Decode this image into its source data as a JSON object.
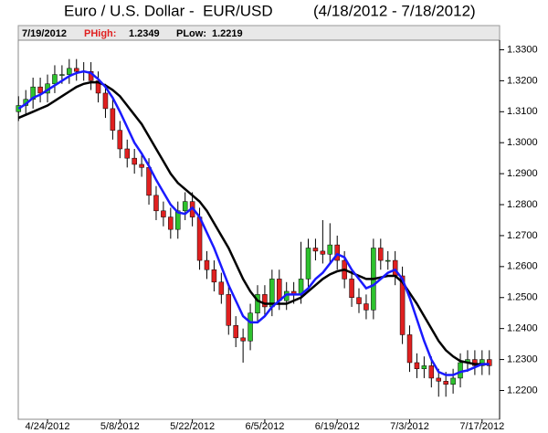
{
  "chart_data": {
    "type": "candlestick",
    "title": "Euro / U.S. Dollar -  EUR/USD",
    "date_range": "(4/18/2012 - 7/18/2012)",
    "info": {
      "date": "7/19/2012",
      "high_label": "PHigh:",
      "high": 1.2349,
      "low_label": "PLow:",
      "low": 1.2219
    },
    "categories": [
      null,
      null,
      null,
      null,
      "4/24/2012",
      null,
      null,
      null,
      null,
      null,
      null,
      null,
      null,
      null,
      "5/8/2012",
      null,
      null,
      null,
      null,
      null,
      null,
      null,
      null,
      null,
      "5/22/2012",
      null,
      null,
      null,
      null,
      null,
      null,
      null,
      null,
      null,
      "6/5/2012",
      null,
      null,
      null,
      null,
      null,
      null,
      null,
      null,
      null,
      "6/19/2012",
      null,
      null,
      null,
      null,
      null,
      null,
      null,
      null,
      null,
      "7/3/2012",
      null,
      null,
      null,
      null,
      null,
      null,
      null,
      null,
      null,
      "7/17/2012",
      null
    ],
    "open": [
      1.31,
      1.312,
      1.314,
      1.318,
      1.316,
      1.319,
      1.322,
      1.322,
      1.324,
      1.323,
      1.323,
      1.32,
      1.316,
      1.311,
      1.304,
      1.298,
      1.295,
      1.293,
      1.292,
      1.283,
      1.278,
      1.276,
      1.272,
      1.278,
      1.281,
      1.276,
      1.262,
      1.259,
      1.255,
      1.251,
      1.241,
      1.237,
      1.236,
      1.245,
      1.251,
      1.247,
      1.256,
      1.249,
      1.252,
      1.251,
      1.256,
      1.266,
      1.265,
      1.264,
      1.267,
      1.262,
      1.256,
      1.25,
      1.248,
      1.246,
      1.266,
      1.262,
      1.262,
      1.257,
      1.238,
      1.229,
      1.227,
      1.228,
      1.224,
      1.223,
      1.222,
      1.224,
      1.229,
      1.23,
      1.228,
      1.23
    ],
    "high": [
      1.315,
      1.317,
      1.321,
      1.321,
      1.322,
      1.325,
      1.325,
      1.327,
      1.327,
      1.326,
      1.326,
      1.323,
      1.319,
      1.314,
      1.307,
      1.301,
      1.298,
      1.296,
      1.295,
      1.286,
      1.281,
      1.279,
      1.281,
      1.284,
      1.284,
      1.279,
      1.265,
      1.262,
      1.258,
      1.254,
      1.244,
      1.24,
      1.248,
      1.254,
      1.254,
      1.259,
      1.259,
      1.255,
      1.255,
      1.268,
      1.269,
      1.269,
      1.275,
      1.274,
      1.27,
      1.265,
      1.259,
      1.253,
      1.251,
      1.269,
      1.269,
      1.265,
      1.265,
      1.26,
      1.241,
      1.232,
      1.231,
      1.231,
      1.227,
      1.226,
      1.227,
      1.232,
      1.233,
      1.233,
      1.233,
      1.233
    ],
    "low": [
      1.307,
      1.309,
      1.311,
      1.313,
      1.313,
      1.316,
      1.319,
      1.319,
      1.32,
      1.32,
      1.317,
      1.313,
      1.308,
      1.301,
      1.295,
      1.292,
      1.29,
      1.289,
      1.28,
      1.275,
      1.273,
      1.269,
      1.269,
      1.275,
      1.273,
      1.259,
      1.256,
      1.252,
      1.248,
      1.238,
      1.234,
      1.229,
      1.233,
      1.242,
      1.244,
      1.244,
      1.246,
      1.246,
      1.248,
      1.248,
      1.253,
      1.262,
      1.261,
      1.261,
      1.259,
      1.253,
      1.247,
      1.245,
      1.243,
      1.243,
      1.259,
      1.259,
      1.254,
      1.235,
      1.226,
      1.224,
      1.224,
      1.221,
      1.218,
      1.218,
      1.219,
      1.221,
      1.226,
      1.225,
      1.225,
      1.225
    ],
    "close": [
      1.312,
      1.314,
      1.318,
      1.316,
      1.319,
      1.322,
      1.322,
      1.324,
      1.323,
      1.323,
      1.32,
      1.316,
      1.311,
      1.304,
      1.298,
      1.295,
      1.293,
      1.292,
      1.283,
      1.278,
      1.276,
      1.272,
      1.278,
      1.281,
      1.276,
      1.262,
      1.259,
      1.255,
      1.251,
      1.241,
      1.237,
      1.236,
      1.245,
      1.251,
      1.247,
      1.256,
      1.249,
      1.252,
      1.251,
      1.256,
      1.266,
      1.265,
      1.264,
      1.267,
      1.262,
      1.256,
      1.25,
      1.248,
      1.246,
      1.266,
      1.262,
      1.262,
      1.257,
      1.238,
      1.229,
      1.227,
      1.228,
      1.224,
      1.223,
      1.222,
      1.224,
      1.229,
      1.23,
      1.228,
      1.23,
      1.228
    ],
    "up_color": "#2ec22e",
    "down_color": "#e02020",
    "overlays": [
      {
        "color": "#000000",
        "values": [
          1.308,
          1.309,
          1.31,
          1.311,
          1.312,
          1.3135,
          1.315,
          1.3165,
          1.318,
          1.319,
          1.3195,
          1.3195,
          1.3185,
          1.317,
          1.315,
          1.312,
          1.309,
          1.306,
          1.302,
          1.298,
          1.294,
          1.29,
          1.287,
          1.285,
          1.283,
          1.281,
          1.278,
          1.274,
          1.27,
          1.266,
          1.261,
          1.256,
          1.252,
          1.249,
          1.248,
          1.248,
          1.248,
          1.248,
          1.249,
          1.25,
          1.252,
          1.254,
          1.256,
          1.2575,
          1.2585,
          1.259,
          1.258,
          1.257,
          1.256,
          1.256,
          1.2565,
          1.257,
          1.257,
          1.255,
          1.2515,
          1.248,
          1.244,
          1.24,
          1.236,
          1.233,
          1.231,
          1.2295,
          1.229,
          1.2285,
          1.2285,
          1.2285
        ]
      },
      {
        "color": "#1a1aff",
        "values": [
          1.311,
          1.3125,
          1.3145,
          1.3155,
          1.317,
          1.3185,
          1.32,
          1.3215,
          1.3225,
          1.323,
          1.3225,
          1.3205,
          1.318,
          1.3145,
          1.31,
          1.305,
          1.3,
          1.2965,
          1.2925,
          1.288,
          1.284,
          1.28,
          1.2775,
          1.277,
          1.279,
          1.276,
          1.271,
          1.266,
          1.26,
          1.254,
          1.249,
          1.244,
          1.242,
          1.242,
          1.244,
          1.247,
          1.249,
          1.251,
          1.251,
          1.251,
          1.253,
          1.256,
          1.258,
          1.261,
          1.264,
          1.263,
          1.259,
          1.256,
          1.253,
          1.254,
          1.256,
          1.258,
          1.259,
          1.256,
          1.25,
          1.243,
          1.236,
          1.23,
          1.226,
          1.225,
          1.225,
          1.226,
          1.2265,
          1.2275,
          1.2285,
          1.2285
        ]
      }
    ],
    "ylim": [
      1.211,
      1.3325
    ],
    "yticks": [
      {
        "value": 1.22,
        "label": "1.2200"
      },
      {
        "value": 1.23,
        "label": "1.2300"
      },
      {
        "value": 1.24,
        "label": "1.2400"
      },
      {
        "value": 1.25,
        "label": "1.2500"
      },
      {
        "value": 1.26,
        "label": "1.2600"
      },
      {
        "value": 1.27,
        "label": "1.2700"
      },
      {
        "value": 1.28,
        "label": "1.2800"
      },
      {
        "value": 1.29,
        "label": "1.2900"
      },
      {
        "value": 1.3,
        "label": "1.3000"
      },
      {
        "value": 1.31,
        "label": "1.3100"
      },
      {
        "value": 1.32,
        "label": "1.3200"
      },
      {
        "value": 1.33,
        "label": "1.3300"
      }
    ]
  }
}
